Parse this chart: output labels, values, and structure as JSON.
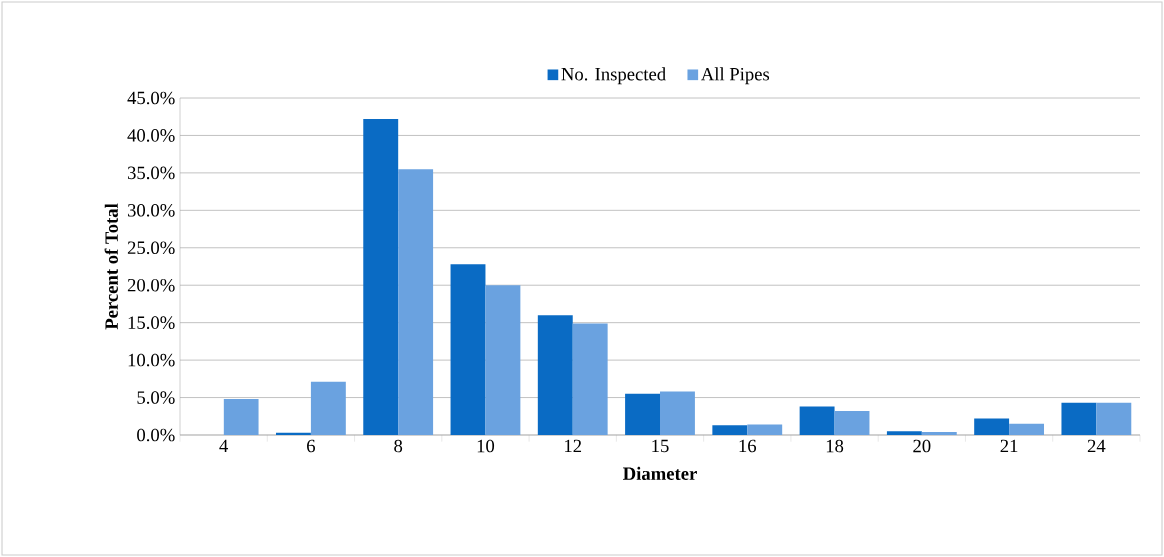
{
  "chart_data": {
    "type": "bar",
    "xlabel": "Diameter",
    "ylabel": "Percent of Total",
    "categories": [
      "4",
      "6",
      "8",
      "10",
      "12",
      "15",
      "16",
      "18",
      "20",
      "21",
      "24"
    ],
    "series": [
      {
        "name": "No. Inspected",
        "color": "#0a6bc4",
        "values": [
          0,
          0.3,
          42.2,
          22.8,
          16.0,
          5.5,
          1.3,
          3.8,
          0.5,
          2.2,
          4.3
        ]
      },
      {
        "name": "All Pipes",
        "color": "#6aa2e0",
        "values": [
          4.8,
          7.1,
          35.5,
          20.0,
          14.9,
          5.8,
          1.4,
          3.2,
          0.4,
          1.5,
          4.3
        ]
      }
    ],
    "ylim": [
      0,
      45
    ],
    "yticks": [
      {
        "value": 0,
        "label": "0.0%"
      },
      {
        "value": 5,
        "label": "5.0%"
      },
      {
        "value": 10,
        "label": "10.0%"
      },
      {
        "value": 15,
        "label": "15.0%"
      },
      {
        "value": 20,
        "label": "20.0%"
      },
      {
        "value": 25,
        "label": "25.0%"
      },
      {
        "value": 30,
        "label": "30.0%"
      },
      {
        "value": 35,
        "label": "35.0%"
      },
      {
        "value": 40,
        "label": "40.0%"
      },
      {
        "value": 45,
        "label": "45.0%"
      }
    ],
    "grid": "y",
    "legend": "top"
  }
}
